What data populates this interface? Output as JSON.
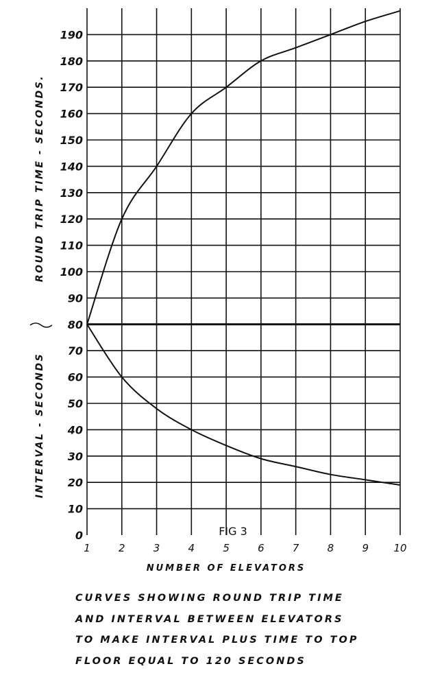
{
  "chart_data": {
    "type": "line",
    "figure_label": "FIG 3",
    "xlabel": "NUMBER OF ELEVATORS",
    "ylabel_upper": "ROUND TRIP TIME - SECONDS.",
    "ylabel_lower": "INTERVAL - SECONDS",
    "x_ticks": [
      "1",
      "2",
      "3",
      "4",
      "5",
      "6",
      "7",
      "8",
      "9",
      "10"
    ],
    "y_ticks": [
      "0",
      "10",
      "20",
      "30",
      "40",
      "50",
      "60",
      "70",
      "80",
      "90",
      "100",
      "110",
      "120",
      "130",
      "140",
      "150",
      "160",
      "170",
      "180",
      "190"
    ],
    "xlim": [
      1,
      10
    ],
    "ylim": [
      0,
      200
    ],
    "grid": true,
    "series": [
      {
        "x": [
          1,
          2,
          3,
          4,
          5,
          6,
          7,
          8,
          9,
          10
        ],
        "values": [
          80,
          120,
          140,
          160,
          170,
          180,
          185,
          190,
          195,
          199
        ]
      },
      {
        "x": [
          1,
          2,
          3,
          4,
          5,
          6,
          7,
          8,
          9,
          10
        ],
        "values": [
          80,
          60,
          48,
          40,
          34,
          29,
          26,
          23,
          21,
          19
        ]
      },
      {
        "x": [
          1,
          10
        ],
        "values": [
          80,
          80
        ]
      }
    ],
    "caption": [
      "CURVES SHOWING ROUND TRIP TIME",
      "AND INTERVAL BETWEEN ELEVATORS",
      "TO MAKE INTERVAL PLUS TIME TO TOP",
      "FLOOR EQUAL TO 120 SECONDS"
    ]
  }
}
